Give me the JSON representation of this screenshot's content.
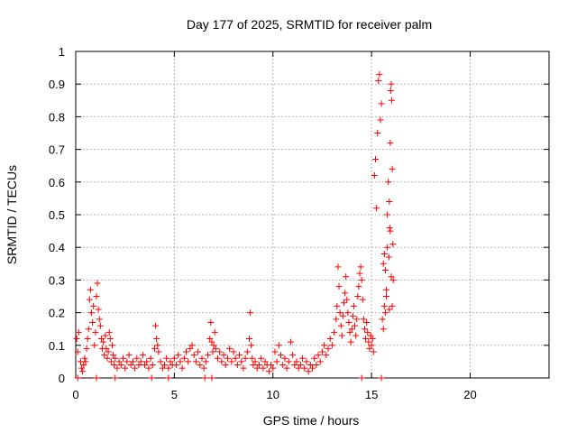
{
  "chart_data": {
    "type": "scatter",
    "title": "Day 177 of 2025, SRMTID for receiver palm",
    "xlabel": "GPS time / hours",
    "ylabel": "SRMTID / TECUs",
    "xlim": [
      0,
      24
    ],
    "ylim": [
      0,
      1
    ],
    "xticks": [
      0,
      5,
      10,
      15,
      20
    ],
    "yticks": [
      0,
      0.1,
      0.2,
      0.3,
      0.4,
      0.5,
      0.6,
      0.7,
      0.8,
      0.9,
      1
    ],
    "ytick_labels": [
      "0",
      "0.1",
      "0.2",
      "0.3",
      "0.4",
      "0.5",
      "0.6",
      "0.7",
      "0.8",
      "0.9",
      "1"
    ],
    "grid": true,
    "marker": "plus",
    "color": "#ff0000",
    "series": [
      {
        "name": "SRMTID",
        "points": [
          [
            0.05,
            0.12
          ],
          [
            0.1,
            0.08
          ],
          [
            0.15,
            0.14
          ],
          [
            0.25,
            0.05
          ],
          [
            0.3,
            0.03
          ],
          [
            0.35,
            0.02
          ],
          [
            0.4,
            0.04
          ],
          [
            0.45,
            0.06
          ],
          [
            0.5,
            0.05
          ],
          [
            0.55,
            0.09
          ],
          [
            0.6,
            0.12
          ],
          [
            0.65,
            0.15
          ],
          [
            0.7,
            0.24
          ],
          [
            0.75,
            0.27
          ],
          [
            0.8,
            0.2
          ],
          [
            0.85,
            0.17
          ],
          [
            0.9,
            0.22
          ],
          [
            0.95,
            0.1
          ],
          [
            1.0,
            0.14
          ],
          [
            1.05,
            0.25
          ],
          [
            1.1,
            0.29
          ],
          [
            1.15,
            0.21
          ],
          [
            1.2,
            0.18
          ],
          [
            1.25,
            0.16
          ],
          [
            1.3,
            0.12
          ],
          [
            1.35,
            0.09
          ],
          [
            1.4,
            0.11
          ],
          [
            1.45,
            0.07
          ],
          [
            1.5,
            0.13
          ],
          [
            1.55,
            0.09
          ],
          [
            1.6,
            0.06
          ],
          [
            1.65,
            0.08
          ],
          [
            1.7,
            0.14
          ],
          [
            1.75,
            0.12
          ],
          [
            1.8,
            0.05
          ],
          [
            1.85,
            0.1
          ],
          [
            1.9,
            0.07
          ],
          [
            1.95,
            0.04
          ],
          [
            2.0,
            0.06
          ],
          [
            2.1,
            0.03
          ],
          [
            2.2,
            0.05
          ],
          [
            2.3,
            0.04
          ],
          [
            2.4,
            0.06
          ],
          [
            2.5,
            0.03
          ],
          [
            2.6,
            0.05
          ],
          [
            2.7,
            0.07
          ],
          [
            2.8,
            0.04
          ],
          [
            2.9,
            0.05
          ],
          [
            3.0,
            0.03
          ],
          [
            3.1,
            0.06
          ],
          [
            3.2,
            0.04
          ],
          [
            3.3,
            0.05
          ],
          [
            3.4,
            0.07
          ],
          [
            3.5,
            0.04
          ],
          [
            3.6,
            0.05
          ],
          [
            3.7,
            0.03
          ],
          [
            3.8,
            0.06
          ],
          [
            3.9,
            0.04
          ],
          [
            4.0,
            0.09
          ],
          [
            4.05,
            0.16
          ],
          [
            4.1,
            0.12
          ],
          [
            4.15,
            0.1
          ],
          [
            4.2,
            0.08
          ],
          [
            4.3,
            0.05
          ],
          [
            4.4,
            0.03
          ],
          [
            4.5,
            0.04
          ],
          [
            4.6,
            0.06
          ],
          [
            4.7,
            0.03
          ],
          [
            4.8,
            0.05
          ],
          [
            4.9,
            0.04
          ],
          [
            5.0,
            0.06
          ],
          [
            5.1,
            0.04
          ],
          [
            5.2,
            0.07
          ],
          [
            5.3,
            0.05
          ],
          [
            5.4,
            0.03
          ],
          [
            5.5,
            0.06
          ],
          [
            5.6,
            0.08
          ],
          [
            5.7,
            0.05
          ],
          [
            5.8,
            0.09
          ],
          [
            5.9,
            0.1
          ],
          [
            6.0,
            0.07
          ],
          [
            6.1,
            0.05
          ],
          [
            6.2,
            0.08
          ],
          [
            6.3,
            0.04
          ],
          [
            6.4,
            0.06
          ],
          [
            6.5,
            0.03
          ],
          [
            6.6,
            0.05
          ],
          [
            6.7,
            0.07
          ],
          [
            6.8,
            0.12
          ],
          [
            6.85,
            0.17
          ],
          [
            6.9,
            0.11
          ],
          [
            6.95,
            0.08
          ],
          [
            7.0,
            0.1
          ],
          [
            7.05,
            0.14
          ],
          [
            7.1,
            0.09
          ],
          [
            7.2,
            0.06
          ],
          [
            7.3,
            0.08
          ],
          [
            7.4,
            0.05
          ],
          [
            7.5,
            0.07
          ],
          [
            7.6,
            0.04
          ],
          [
            7.7,
            0.06
          ],
          [
            7.8,
            0.09
          ],
          [
            7.9,
            0.05
          ],
          [
            8.0,
            0.08
          ],
          [
            8.1,
            0.06
          ],
          [
            8.2,
            0.04
          ],
          [
            8.3,
            0.07
          ],
          [
            8.4,
            0.05
          ],
          [
            8.5,
            0.03
          ],
          [
            8.6,
            0.06
          ],
          [
            8.7,
            0.08
          ],
          [
            8.8,
            0.12
          ],
          [
            8.85,
            0.2
          ],
          [
            8.9,
            0.1
          ],
          [
            8.95,
            0.06
          ],
          [
            9.0,
            0.04
          ],
          [
            9.1,
            0.05
          ],
          [
            9.2,
            0.03
          ],
          [
            9.3,
            0.04
          ],
          [
            9.4,
            0.06
          ],
          [
            9.5,
            0.03
          ],
          [
            9.6,
            0.05
          ],
          [
            9.7,
            0.04
          ],
          [
            9.8,
            0.02
          ],
          [
            9.9,
            0.04
          ],
          [
            10.0,
            0.03
          ],
          [
            10.1,
            0.08
          ],
          [
            10.2,
            0.05
          ],
          [
            10.3,
            0.1
          ],
          [
            10.4,
            0.07
          ],
          [
            10.5,
            0.04
          ],
          [
            10.6,
            0.06
          ],
          [
            10.7,
            0.03
          ],
          [
            10.8,
            0.05
          ],
          [
            10.9,
            0.11
          ],
          [
            11.0,
            0.07
          ],
          [
            11.1,
            0.04
          ],
          [
            11.2,
            0.05
          ],
          [
            11.3,
            0.03
          ],
          [
            11.4,
            0.04
          ],
          [
            11.5,
            0.06
          ],
          [
            11.6,
            0.03
          ],
          [
            11.7,
            0.05
          ],
          [
            11.8,
            0.02
          ],
          [
            11.9,
            0.04
          ],
          [
            12.0,
            0.03
          ],
          [
            12.1,
            0.06
          ],
          [
            12.2,
            0.04
          ],
          [
            12.3,
            0.07
          ],
          [
            12.4,
            0.05
          ],
          [
            12.5,
            0.08
          ],
          [
            12.6,
            0.1
          ],
          [
            12.7,
            0.07
          ],
          [
            12.8,
            0.09
          ],
          [
            12.9,
            0.12
          ],
          [
            13.0,
            0.1
          ],
          [
            13.1,
            0.14
          ],
          [
            13.2,
            0.18
          ],
          [
            13.25,
            0.22
          ],
          [
            13.3,
            0.34
          ],
          [
            13.35,
            0.28
          ],
          [
            13.4,
            0.2
          ],
          [
            13.45,
            0.16
          ],
          [
            13.5,
            0.13
          ],
          [
            13.55,
            0.19
          ],
          [
            13.6,
            0.23
          ],
          [
            13.65,
            0.26
          ],
          [
            13.7,
            0.31
          ],
          [
            13.75,
            0.24
          ],
          [
            13.8,
            0.2
          ],
          [
            13.85,
            0.17
          ],
          [
            13.9,
            0.14
          ],
          [
            13.95,
            0.11
          ],
          [
            14.0,
            0.15
          ],
          [
            14.05,
            0.19
          ],
          [
            14.1,
            0.22
          ],
          [
            14.15,
            0.16
          ],
          [
            14.2,
            0.13
          ],
          [
            14.25,
            0.18
          ],
          [
            14.3,
            0.25
          ],
          [
            14.35,
            0.28
          ],
          [
            14.4,
            0.32
          ],
          [
            14.45,
            0.34
          ],
          [
            14.5,
            0.3
          ],
          [
            14.55,
            0.24
          ],
          [
            14.6,
            0.18
          ],
          [
            14.65,
            0.15
          ],
          [
            14.7,
            0.12
          ],
          [
            14.75,
            0.17
          ],
          [
            14.8,
            0.14
          ],
          [
            14.85,
            0.11
          ],
          [
            14.9,
            0.09
          ],
          [
            14.95,
            0.13
          ],
          [
            15.0,
            0.1
          ],
          [
            15.05,
            0.12
          ],
          [
            15.1,
            0.08
          ],
          [
            15.15,
            0.62
          ],
          [
            15.2,
            0.67
          ],
          [
            15.25,
            0.52
          ],
          [
            15.3,
            0.75
          ],
          [
            15.35,
            0.91
          ],
          [
            15.4,
            0.93
          ],
          [
            15.45,
            0.79
          ],
          [
            15.5,
            0.84
          ],
          [
            15.55,
            0.18
          ],
          [
            15.6,
            0.15
          ],
          [
            15.65,
            0.22
          ],
          [
            15.7,
            0.33
          ],
          [
            15.75,
            0.27
          ],
          [
            15.8,
            0.4
          ],
          [
            15.85,
            0.6
          ],
          [
            15.9,
            0.54
          ],
          [
            15.92,
            0.46
          ],
          [
            15.95,
            0.72
          ],
          [
            15.97,
            0.88
          ],
          [
            16.0,
            0.9
          ],
          [
            16.02,
            0.85
          ],
          [
            16.05,
            0.64
          ],
          [
            16.08,
            0.41
          ],
          [
            16.1,
            0.3
          ],
          [
            15.6,
            0.35
          ],
          [
            15.65,
            0.38
          ],
          [
            15.7,
            0.2
          ],
          [
            15.75,
            0.25
          ],
          [
            15.8,
            0.5
          ],
          [
            15.88,
            0.37
          ],
          [
            15.9,
            0.21
          ],
          [
            15.95,
            0.45
          ],
          [
            16.0,
            0.31
          ],
          [
            16.05,
            0.22
          ],
          [
            0.1,
            0.0
          ],
          [
            1.05,
            0.0
          ],
          [
            2.0,
            0.0
          ],
          [
            3.85,
            0.0
          ],
          [
            4.7,
            0.0
          ],
          [
            6.55,
            0.0
          ],
          [
            6.9,
            0.0
          ],
          [
            14.5,
            0.0
          ],
          [
            15.5,
            0.0
          ]
        ]
      }
    ]
  }
}
